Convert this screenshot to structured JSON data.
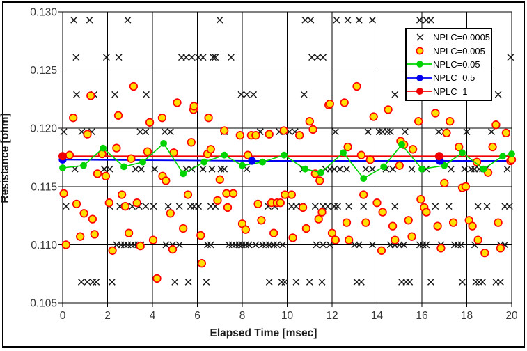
{
  "chart_data": {
    "type": "scatter",
    "title": "",
    "xlabel": "Elapsed Time [msec]",
    "ylabel": "Resistance [ohm]",
    "xlim": [
      0,
      20
    ],
    "ylim": [
      0.105,
      0.13
    ],
    "x_ticks": [
      0,
      2,
      4,
      6,
      8,
      10,
      12,
      14,
      16,
      18,
      20
    ],
    "x_tick_labels": [
      "0",
      "2",
      "4",
      "6",
      "8",
      "10",
      "12",
      "14",
      "16",
      "18",
      "20"
    ],
    "y_ticks": [
      0.105,
      0.11,
      0.115,
      0.12,
      0.125,
      0.13
    ],
    "y_tick_labels": [
      "0.105",
      "0.110",
      "0.115",
      "0.120",
      "0.125",
      "0.130"
    ],
    "grid": true,
    "legend_position": "top-right",
    "colors": {
      "x_series": "#1a1a1a",
      "orange_fill": "#ffdf00",
      "orange_stroke": "#ff0000",
      "green": "#00d400",
      "blue": "#0000f0",
      "red": "#f00000",
      "grid": "#000000",
      "tick_text": "#373737"
    },
    "series": [
      {
        "name": "NPLC=0.0005",
        "type": "scatter",
        "marker": "x",
        "color": "#1a1a1a",
        "quantized_levels": [
          {
            "r": 0.1293,
            "t": [
              0.5,
              1.2,
              2.9,
              7.0,
              10.8,
              11.05,
              12.2,
              12.7,
              13.2,
              13.8,
              15.9,
              16.2,
              16.4
            ]
          },
          {
            "r": 0.1261,
            "t": [
              0.6,
              1.95,
              2.5,
              5.3,
              5.5,
              5.75,
              6.05,
              6.25,
              6.7,
              6.8,
              7.5,
              11.1,
              11.35,
              11.6,
              19.95
            ]
          },
          {
            "r": 0.1229,
            "t": [
              0.62,
              1.4,
              2.33,
              3.72,
              7.95,
              8.2,
              8.5,
              10.75,
              14.8,
              19.4
            ]
          },
          {
            "r": 0.1197,
            "t": [
              0.05,
              0.85,
              1.3,
              3.45,
              3.7,
              4.55,
              4.8,
              7.2,
              8.8,
              9.65,
              10.1,
              10.35,
              12.15,
              13.6,
              14.1,
              14.25,
              14.45,
              14.6,
              15.25,
              16.75,
              17.0,
              18.0,
              19.1
            ]
          },
          {
            "r": 0.1165,
            "t": [
              0.55,
              1.85,
              2.1,
              3.25,
              3.5,
              4.1,
              5.5,
              5.75,
              6.25,
              6.65,
              7.05,
              7.2,
              8.2,
              10.7,
              11.7,
              11.9,
              12.1,
              12.35,
              12.65,
              13.5,
              13.8,
              14.4,
              14.7,
              15.55,
              16.2,
              17.3,
              17.9,
              18.2,
              18.35,
              18.55,
              18.7,
              18.85,
              19.8
            ]
          },
          {
            "r": 0.1133,
            "t": [
              0.15,
              2.1,
              2.55,
              2.85,
              3.1,
              3.4,
              3.7,
              4.05,
              4.7,
              5.2,
              5.7,
              5.85,
              6.05,
              6.6,
              6.8,
              9.15,
              9.45,
              10.2,
              10.4,
              10.65,
              11.25,
              11.6,
              11.8,
              12.1,
              12.25,
              12.75,
              13.4,
              14.8,
              16.6,
              17.2,
              18.5,
              18.9,
              19.7,
              19.9
            ]
          },
          {
            "r": 0.11,
            "t": [
              2.4,
              2.6,
              2.75,
              2.9,
              3.05,
              3.2,
              3.35,
              3.5,
              4.6,
              4.9,
              5.2,
              6.45,
              6.6,
              7.4,
              7.55,
              7.7,
              7.85,
              8.0,
              8.15,
              8.3,
              8.6,
              8.9,
              9.05,
              9.2,
              9.4,
              9.55,
              9.8,
              11.3,
              11.6,
              11.9,
              13.0,
              13.2,
              13.8,
              14.6,
              14.8,
              15.0,
              15.2,
              15.9,
              16.05,
              16.2,
              16.85,
              17.45,
              17.6,
              17.75,
              18.35,
              19.5,
              19.7
            ]
          },
          {
            "r": 0.1068,
            "t": [
              0.83,
              1.1,
              1.35,
              1.5,
              2.2,
              5.0,
              5.6,
              6.4,
              9.2,
              9.75,
              9.9,
              10.4,
              11.0,
              11.55,
              13.1,
              13.3,
              15.1,
              15.3,
              15.45,
              16.4,
              17.8,
              18.4,
              18.55,
              18.7,
              19.3,
              19.5
            ]
          }
        ]
      },
      {
        "name": "NPLC=0.005",
        "type": "scatter",
        "marker": "circle",
        "fill": "#ffdf00",
        "stroke": "#ff0000",
        "points": [
          [
            0.05,
            0.1144
          ],
          [
            0.15,
            0.11
          ],
          [
            0.31,
            0.1177
          ],
          [
            0.47,
            0.1209
          ],
          [
            0.62,
            0.1135
          ],
          [
            0.78,
            0.1107
          ],
          [
            0.95,
            0.1127
          ],
          [
            1.1,
            0.1195
          ],
          [
            1.25,
            0.1228
          ],
          [
            1.33,
            0.1122
          ],
          [
            1.42,
            0.1109
          ],
          [
            1.55,
            0.1161
          ],
          [
            1.76,
            0.1178
          ],
          [
            1.92,
            0.1159
          ],
          [
            2.07,
            0.1136
          ],
          [
            2.22,
            0.1095
          ],
          [
            2.4,
            0.1183
          ],
          [
            2.48,
            0.1211
          ],
          [
            2.64,
            0.1143
          ],
          [
            2.79,
            0.1133
          ],
          [
            2.95,
            0.111
          ],
          [
            3.05,
            0.1174
          ],
          [
            3.16,
            0.1236
          ],
          [
            3.31,
            0.1136
          ],
          [
            3.46,
            0.1099
          ],
          [
            3.78,
            0.118
          ],
          [
            3.88,
            0.1205
          ],
          [
            4.03,
            0.1104
          ],
          [
            4.2,
            0.1071
          ],
          [
            4.43,
            0.1209
          ],
          [
            4.45,
            0.1159
          ],
          [
            4.6,
            0.1155
          ],
          [
            4.8,
            0.1127
          ],
          [
            4.9,
            0.1096
          ],
          [
            4.95,
            0.1179
          ],
          [
            5.1,
            0.1222
          ],
          [
            5.37,
            0.1114
          ],
          [
            5.58,
            0.1143
          ],
          [
            5.73,
            0.1188
          ],
          [
            5.83,
            0.1216
          ],
          [
            5.85,
            0.1219
          ],
          [
            6.15,
            0.1108
          ],
          [
            6.2,
            0.1084
          ],
          [
            6.45,
            0.1178
          ],
          [
            6.5,
            0.1209
          ],
          [
            6.6,
            0.1182
          ],
          [
            6.9,
            0.1138
          ],
          [
            7.0,
            0.1156
          ],
          [
            7.2,
            0.1198
          ],
          [
            7.3,
            0.1144
          ],
          [
            7.35,
            0.1132
          ],
          [
            7.6,
            0.1144
          ],
          [
            7.9,
            0.1194
          ],
          [
            8.0,
            0.1118
          ],
          [
            8.15,
            0.1113
          ],
          [
            8.25,
            0.1177
          ],
          [
            8.4,
            0.1194
          ],
          [
            8.6,
            0.1194
          ],
          [
            8.7,
            0.1135
          ],
          [
            8.85,
            0.1121
          ],
          [
            9.2,
            0.1195
          ],
          [
            9.3,
            0.1136
          ],
          [
            9.4,
            0.111
          ],
          [
            9.55,
            0.1136
          ],
          [
            9.7,
            0.1136
          ],
          [
            9.85,
            0.1198
          ],
          [
            9.9,
            0.1143
          ],
          [
            10.2,
            0.1143
          ],
          [
            10.25,
            0.1106
          ],
          [
            10.55,
            0.1194
          ],
          [
            10.7,
            0.1132
          ],
          [
            10.85,
            0.1114
          ],
          [
            11.0,
            0.1206
          ],
          [
            11.15,
            0.1199
          ],
          [
            11.25,
            0.1161
          ],
          [
            11.4,
            0.1122
          ],
          [
            11.45,
            0.1155
          ],
          [
            11.55,
            0.1128
          ],
          [
            11.85,
            0.122
          ],
          [
            11.9,
            0.1221
          ],
          [
            12.0,
            0.111
          ],
          [
            12.15,
            0.1104
          ],
          [
            12.55,
            0.1222
          ],
          [
            12.65,
            0.1119
          ],
          [
            12.7,
            0.1184
          ],
          [
            12.75,
            0.1104
          ],
          [
            13.1,
            0.1236
          ],
          [
            13.3,
            0.1177
          ],
          [
            13.4,
            0.1143
          ],
          [
            13.5,
            0.1119
          ],
          [
            13.7,
            0.1173
          ],
          [
            13.85,
            0.121
          ],
          [
            14.0,
            0.1136
          ],
          [
            14.2,
            0.1095
          ],
          [
            14.25,
            0.1128
          ],
          [
            14.5,
            0.1216
          ],
          [
            14.7,
            0.1116
          ],
          [
            14.8,
            0.1104
          ],
          [
            15.0,
            0.1168
          ],
          [
            15.05,
            0.1189
          ],
          [
            15.2,
            0.1186
          ],
          [
            15.4,
            0.1121
          ],
          [
            15.55,
            0.1107
          ],
          [
            15.6,
            0.1182
          ],
          [
            15.85,
            0.1206
          ],
          [
            15.95,
            0.1139
          ],
          [
            16.1,
            0.1132
          ],
          [
            16.2,
            0.1128
          ],
          [
            16.6,
            0.1213
          ],
          [
            16.7,
            0.1116
          ],
          [
            16.85,
            0.1097
          ],
          [
            17.0,
            0.1153
          ],
          [
            17.1,
            0.1196
          ],
          [
            17.25,
            0.1206
          ],
          [
            17.4,
            0.1119
          ],
          [
            17.65,
            0.1184
          ],
          [
            17.8,
            0.1149
          ],
          [
            17.95,
            0.115
          ],
          [
            18.1,
            0.1121
          ],
          [
            18.25,
            0.1116
          ],
          [
            18.45,
            0.1171
          ],
          [
            18.5,
            0.1104
          ],
          [
            18.8,
            0.1093
          ],
          [
            18.95,
            0.1162
          ],
          [
            19.15,
            0.1184
          ],
          [
            19.3,
            0.1203
          ],
          [
            19.4,
            0.1119
          ],
          [
            19.5,
            0.1097
          ],
          [
            19.75,
            0.1196
          ],
          [
            19.95,
            0.1172
          ],
          [
            20.0,
            0.1173
          ]
        ]
      },
      {
        "name": "NPLC=0.05",
        "type": "line",
        "marker": "circle",
        "color": "#00d400",
        "fill": "#00d400",
        "points": [
          [
            0,
            0.1166
          ],
          [
            0.93,
            0.1168
          ],
          [
            1.8,
            0.1183
          ],
          [
            2.73,
            0.1167
          ],
          [
            3.57,
            0.1171
          ],
          [
            4.5,
            0.1187
          ],
          [
            5.37,
            0.1161
          ],
          [
            6.3,
            0.1171
          ],
          [
            7.2,
            0.1177
          ],
          [
            8.0,
            0.1168
          ],
          [
            8.9,
            0.1171
          ],
          [
            9.86,
            0.1177
          ],
          [
            10.8,
            0.1165
          ],
          [
            11.5,
            0.1162
          ],
          [
            12.5,
            0.1179
          ],
          [
            13.4,
            0.1157
          ],
          [
            14.3,
            0.1167
          ],
          [
            15.1,
            0.1186
          ],
          [
            16.0,
            0.1165
          ],
          [
            17.0,
            0.1168
          ],
          [
            17.8,
            0.1179
          ],
          [
            18.75,
            0.1165
          ],
          [
            19.6,
            0.1176
          ],
          [
            20,
            0.1178
          ]
        ]
      },
      {
        "name": "NPLC=0.5",
        "type": "line",
        "marker": "circle",
        "color": "#0000f0",
        "fill": "#0000f0",
        "points": [
          [
            0,
            0.1173
          ],
          [
            8.43,
            0.1172
          ],
          [
            16.8,
            0.1172
          ],
          [
            20,
            0.1172
          ]
        ],
        "marker_t": [
          0,
          8.43,
          16.8
        ]
      },
      {
        "name": "NPLC=1",
        "type": "line",
        "marker": "circle",
        "color": "#f00000",
        "fill": "#f00000",
        "points": [
          [
            0,
            0.1176
          ],
          [
            16.77,
            0.1176
          ],
          [
            20,
            0.1176
          ]
        ],
        "marker_t": [
          0,
          16.77
        ]
      }
    ]
  }
}
